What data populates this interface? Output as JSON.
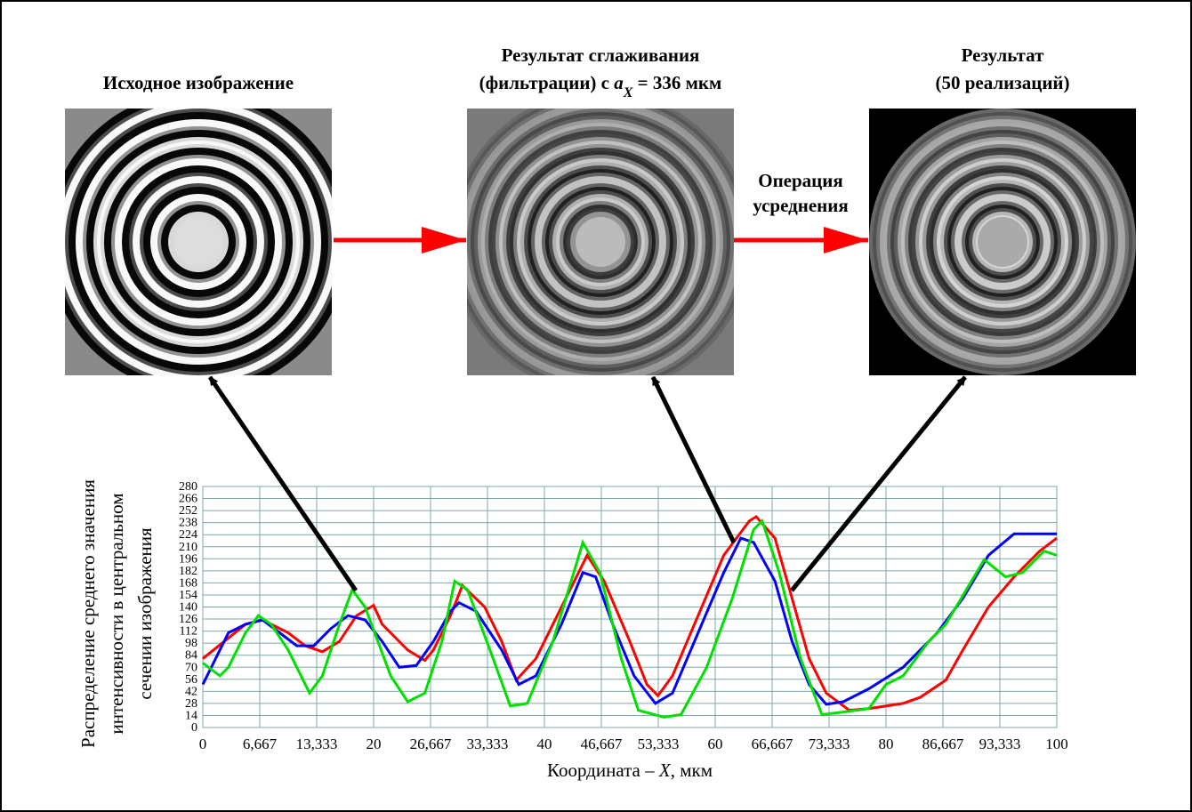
{
  "figure": {
    "image_titles": [
      {
        "lines": [
          [
            "Исходное изображение"
          ]
        ]
      },
      {
        "lines": [
          [
            "Результат сглаживания"
          ],
          [
            "(фильтрации) с ",
            "a",
            "X",
            " = 336 мкм"
          ]
        ]
      },
      {
        "lines": [
          [
            "Результат"
          ],
          [
            "(50 реализаций)"
          ]
        ]
      }
    ],
    "operation_label": [
      "Операция",
      "усреднения"
    ]
  },
  "chart_data": {
    "type": "line",
    "y_label": [
      "Распределение среднего значения",
      "интенсивности в центральном",
      "сечении изображения"
    ],
    "x_label": [
      "Координата – ",
      "X",
      ", мкм"
    ],
    "xlim": [
      0,
      100
    ],
    "ylim": [
      0,
      280
    ],
    "xticks": [
      0,
      {
        "value": 6.667,
        "label": "6,667"
      },
      {
        "value": 13.333,
        "label": "13,333"
      },
      20,
      {
        "value": 26.667,
        "label": "26,667"
      },
      {
        "value": 33.333,
        "label": "33,333"
      },
      40,
      {
        "value": 46.667,
        "label": "46,667"
      },
      {
        "value": 53.333,
        "label": "53,333"
      },
      60,
      {
        "value": 66.667,
        "label": "66,667"
      },
      {
        "value": 73.333,
        "label": "73,333"
      },
      80,
      {
        "value": 86.667,
        "label": "86,667"
      },
      {
        "value": 93.333,
        "label": "93,333"
      },
      100
    ],
    "yticks": [
      0,
      14,
      28,
      42,
      56,
      70,
      84,
      98,
      112,
      126,
      140,
      154,
      168,
      182,
      196,
      210,
      224,
      238,
      252,
      266,
      280
    ],
    "grid": true,
    "series": [
      {
        "color": "#ff0000",
        "x": [
          0,
          5,
          7,
          10,
          12,
          14,
          16,
          18,
          20,
          21,
          24,
          26,
          27,
          29,
          30.4,
          33,
          35,
          36.7,
          39,
          42,
          45,
          47,
          50,
          52,
          53.3,
          55,
          58,
          61,
          64,
          64.8,
          67,
          69,
          71,
          73,
          75.7,
          78,
          82,
          84,
          87,
          89,
          92,
          95,
          98,
          100
        ],
        "values": [
          80,
          120,
          125,
          110,
          95,
          88,
          100,
          130,
          142,
          120,
          90,
          78,
          90,
          130,
          165,
          140,
          100,
          55,
          80,
          140,
          200,
          170,
          100,
          50,
          37,
          60,
          130,
          200,
          240,
          245,
          220,
          150,
          80,
          40,
          20,
          22,
          28,
          35,
          55,
          90,
          140,
          175,
          205,
          220
        ]
      },
      {
        "color": "#0000ff",
        "x": [
          0,
          3,
          5,
          7,
          9,
          11,
          13,
          15,
          17,
          19,
          21,
          23,
          25,
          27,
          29,
          30,
          32,
          35,
          37,
          39,
          42,
          44.5,
          46,
          48,
          50.5,
          53,
          55,
          58,
          61,
          63,
          64.5,
          67,
          69,
          71,
          73,
          75,
          78,
          82,
          86,
          89,
          92,
          95,
          97,
          100
        ],
        "values": [
          50,
          110,
          120,
          125,
          110,
          95,
          95,
          115,
          130,
          125,
          100,
          70,
          72,
          100,
          135,
          145,
          135,
          90,
          50,
          60,
          120,
          180,
          175,
          120,
          60,
          28,
          40,
          110,
          180,
          220,
          215,
          170,
          100,
          50,
          27,
          30,
          45,
          70,
          110,
          150,
          200,
          225,
          225,
          225
        ]
      },
      {
        "color": "#00e000",
        "x": [
          0,
          2,
          3,
          5,
          6.5,
          8,
          10,
          12.5,
          14,
          16,
          17.5,
          19,
          22,
          24,
          26,
          28,
          29.5,
          31,
          34,
          36,
          38,
          41,
          44.5,
          46.5,
          49,
          51,
          54,
          56,
          59,
          62,
          64.5,
          65.5,
          67.5,
          70,
          72.5,
          75,
          78,
          80,
          82,
          85,
          87,
          90,
          91.5,
          94,
          96,
          98.5,
          100
        ],
        "values": [
          75,
          60,
          70,
          110,
          130,
          120,
          90,
          40,
          60,
          120,
          160,
          140,
          60,
          30,
          40,
          100,
          170,
          160,
          80,
          25,
          28,
          100,
          215,
          180,
          80,
          20,
          12,
          15,
          70,
          150,
          230,
          240,
          180,
          80,
          15,
          18,
          22,
          50,
          60,
          100,
          120,
          170,
          195,
          175,
          180,
          205,
          200
        ]
      }
    ]
  }
}
